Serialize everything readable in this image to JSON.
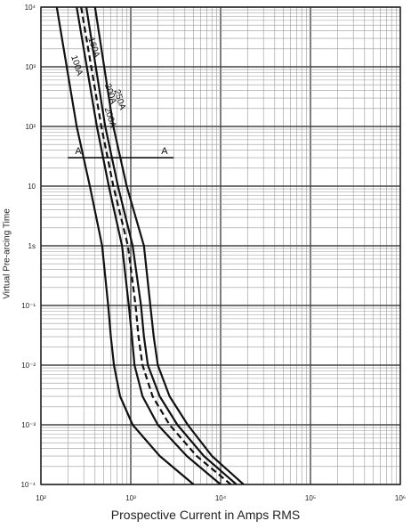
{
  "chart_data": {
    "type": "line",
    "title": "",
    "xlabel": "Prospective Current in Amps RMS",
    "ylabel": "Virtual Pre-arcing Time",
    "xscale": "log",
    "yscale": "log",
    "xlim": [
      100,
      1000000
    ],
    "ylim": [
      0.0001,
      10000
    ],
    "grid": true,
    "x_tick_labels": [
      "10²",
      "10³",
      "10⁴",
      "10⁵",
      "10⁶"
    ],
    "y_tick_labels": [
      "10⁴",
      "10³",
      "10²",
      "10",
      "1s",
      "10⁻¹",
      "10⁻²",
      "10⁻³",
      "10⁻⁴"
    ],
    "colors": {
      "curve": "#111111",
      "grid_major": "#444444",
      "grid_minor": "#9a9a9a"
    },
    "series": [
      {
        "name": "100A",
        "x": [
          150,
          250,
          350,
          480,
          560,
          600,
          650,
          760,
          1050,
          2100,
          5000
        ],
        "y": [
          10000,
          100,
          10,
          1,
          0.1,
          0.03,
          0.01,
          0.003,
          0.001,
          0.0003,
          0.0001
        ]
      },
      {
        "name": "160A",
        "x": [
          250,
          420,
          570,
          800,
          950,
          1030,
          1100,
          1350,
          2000,
          4200,
          10000
        ],
        "y": [
          10000,
          100,
          10,
          1,
          0.1,
          0.03,
          0.01,
          0.003,
          0.001,
          0.0003,
          0.0001
        ]
      },
      {
        "name": "200A",
        "x": [
          320,
          520,
          720,
          1050,
          1300,
          1400,
          1550,
          2100,
          3300,
          6500,
          15000
        ],
        "y": [
          10000,
          100,
          10,
          1,
          0.1,
          0.03,
          0.01,
          0.003,
          0.001,
          0.0003,
          0.0001
        ]
      },
      {
        "name": "250A",
        "x": [
          400,
          640,
          900,
          1400,
          1650,
          1800,
          2000,
          2700,
          4300,
          8000,
          18000
        ],
        "y": [
          10000,
          100,
          10,
          1,
          0.1,
          0.03,
          0.01,
          0.003,
          0.001,
          0.0003,
          0.0001
        ]
      },
      {
        "name": "200A",
        "x": [
          280,
          470,
          640,
          930,
          1130,
          1220,
          1350,
          1750,
          2700,
          5400,
          13000
        ],
        "y": [
          10000,
          100,
          10,
          1,
          0.1,
          0.03,
          0.01,
          0.003,
          0.001,
          0.0003,
          0.0001
        ]
      }
    ],
    "curve_labels": [
      "100A",
      "160A",
      "200A",
      "250A",
      "200A"
    ],
    "annotation": {
      "label_left": "A",
      "label_right": "A",
      "y": 30,
      "x_start": 200,
      "x_end": 3000
    }
  }
}
